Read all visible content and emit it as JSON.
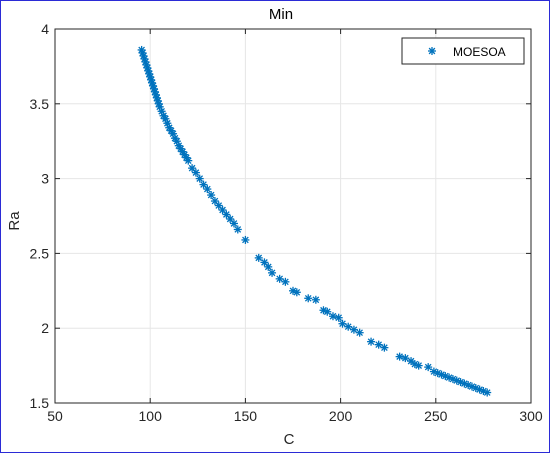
{
  "chart_data": {
    "type": "scatter",
    "title": "Min",
    "xlabel": "C",
    "ylabel": "Ra",
    "xlim": [
      50,
      300
    ],
    "ylim": [
      1.5,
      4
    ],
    "xticks": [
      "50",
      "100",
      "150",
      "200",
      "250",
      "300"
    ],
    "yticks": [
      "1.5",
      "2",
      "2.5",
      "3",
      "3.5",
      "4"
    ],
    "grid": true,
    "legend_position": "top-right",
    "marker": "asterisk",
    "color": "#0072BD",
    "series": [
      {
        "name": "MOESOA",
        "points": [
          [
            95.5,
            3.86
          ],
          [
            96,
            3.84
          ],
          [
            96.5,
            3.82
          ],
          [
            97,
            3.8
          ],
          [
            97.5,
            3.78
          ],
          [
            98,
            3.76
          ],
          [
            98.5,
            3.74
          ],
          [
            99,
            3.72
          ],
          [
            99.5,
            3.7
          ],
          [
            100,
            3.68
          ],
          [
            100.5,
            3.66
          ],
          [
            101,
            3.64
          ],
          [
            101.5,
            3.62
          ],
          [
            102,
            3.6
          ],
          [
            102.5,
            3.58
          ],
          [
            103,
            3.56
          ],
          [
            103.5,
            3.54
          ],
          [
            104,
            3.52
          ],
          [
            104.5,
            3.5
          ],
          [
            105,
            3.48
          ],
          [
            106,
            3.45
          ],
          [
            107,
            3.42
          ],
          [
            108,
            3.4
          ],
          [
            109,
            3.37
          ],
          [
            110,
            3.34
          ],
          [
            111,
            3.32
          ],
          [
            112,
            3.3
          ],
          [
            113,
            3.27
          ],
          [
            114,
            3.25
          ],
          [
            115,
            3.22
          ],
          [
            116,
            3.2
          ],
          [
            117,
            3.18
          ],
          [
            118,
            3.16
          ],
          [
            119,
            3.14
          ],
          [
            120,
            3.12
          ],
          [
            122,
            3.07
          ],
          [
            124,
            3.04
          ],
          [
            126,
            3.0
          ],
          [
            128,
            2.96
          ],
          [
            130,
            2.93
          ],
          [
            132,
            2.89
          ],
          [
            134,
            2.85
          ],
          [
            136,
            2.82
          ],
          [
            138,
            2.79
          ],
          [
            140,
            2.76
          ],
          [
            142,
            2.73
          ],
          [
            144,
            2.7
          ],
          [
            146,
            2.66
          ],
          [
            150,
            2.59
          ],
          [
            157,
            2.47
          ],
          [
            160,
            2.44
          ],
          [
            162,
            2.41
          ],
          [
            164,
            2.37
          ],
          [
            168,
            2.33
          ],
          [
            171,
            2.31
          ],
          [
            175,
            2.25
          ],
          [
            177,
            2.24
          ],
          [
            183,
            2.2
          ],
          [
            187,
            2.19
          ],
          [
            191,
            2.12
          ],
          [
            193,
            2.11
          ],
          [
            196,
            2.08
          ],
          [
            199,
            2.07
          ],
          [
            201,
            2.03
          ],
          [
            204,
            2.01
          ],
          [
            207,
            1.99
          ],
          [
            210,
            1.97
          ],
          [
            216,
            1.91
          ],
          [
            220,
            1.89
          ],
          [
            223,
            1.87
          ],
          [
            231,
            1.81
          ],
          [
            234,
            1.8
          ],
          [
            237,
            1.78
          ],
          [
            239,
            1.76
          ],
          [
            241,
            1.75
          ],
          [
            246,
            1.74
          ],
          [
            249,
            1.71
          ],
          [
            251,
            1.7
          ],
          [
            253,
            1.69
          ],
          [
            255,
            1.68
          ],
          [
            257,
            1.67
          ],
          [
            259,
            1.66
          ],
          [
            261,
            1.65
          ],
          [
            263,
            1.64
          ],
          [
            265,
            1.63
          ],
          [
            267,
            1.62
          ],
          [
            269,
            1.61
          ],
          [
            271,
            1.6
          ],
          [
            273,
            1.59
          ],
          [
            275,
            1.58
          ],
          [
            277,
            1.57
          ]
        ]
      }
    ]
  }
}
